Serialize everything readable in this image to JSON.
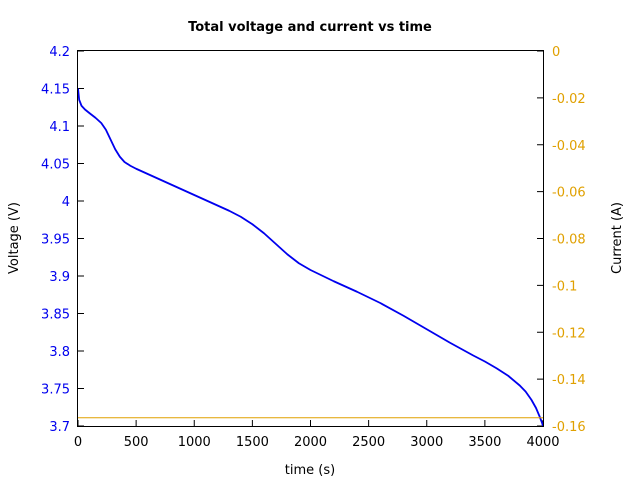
{
  "chart_data": {
    "type": "line",
    "title": "Total voltage and current vs time",
    "xlabel": "time (s)",
    "ylabel_left": "Voltage (V)",
    "ylabel_right": "Current (A)",
    "xlim": [
      0,
      4000
    ],
    "ylim_left": [
      3.7,
      4.2
    ],
    "ylim_right": [
      -0.16,
      0
    ],
    "x_ticks": [
      0,
      500,
      1000,
      1500,
      2000,
      2500,
      3000,
      3500,
      4000
    ],
    "x_tick_labels": [
      "0",
      "500",
      "1000",
      "1500",
      "2000",
      "2500",
      "3000",
      "3500",
      "4000"
    ],
    "y_left_ticks": [
      3.7,
      3.75,
      3.8,
      3.85,
      3.9,
      3.95,
      4.0,
      4.05,
      4.1,
      4.15,
      4.2
    ],
    "y_left_tick_labels": [
      "3.7",
      "3.75",
      "3.8",
      "3.85",
      "3.9",
      "3.95",
      "4",
      "4.05",
      "4.1",
      "4.15",
      "4.2"
    ],
    "y_right_ticks": [
      -0.16,
      -0.14,
      -0.12,
      -0.1,
      -0.08,
      -0.06,
      -0.04,
      -0.02,
      0
    ],
    "y_right_tick_labels": [
      "-0.16",
      "-0.14",
      "-0.12",
      "-0.1",
      "-0.08",
      "-0.06",
      "-0.04",
      "-0.02",
      "0"
    ],
    "grid": false,
    "series": [
      {
        "axis": "left",
        "color": "#0000ee",
        "x": [
          0,
          10,
          30,
          60,
          100,
          150,
          200,
          240,
          280,
          320,
          360,
          400,
          450,
          500,
          600,
          700,
          800,
          900,
          1000,
          1100,
          1200,
          1300,
          1400,
          1500,
          1600,
          1700,
          1800,
          1900,
          2000,
          2200,
          2400,
          2600,
          2800,
          3000,
          3200,
          3400,
          3500,
          3600,
          3700,
          3800,
          3850,
          3900,
          3940,
          3970,
          3990,
          4000
        ],
        "y": [
          4.15,
          4.135,
          4.127,
          4.122,
          4.117,
          4.111,
          4.104,
          4.095,
          4.082,
          4.069,
          4.059,
          4.052,
          4.047,
          4.043,
          4.036,
          4.029,
          4.022,
          4.015,
          4.008,
          4.001,
          3.994,
          3.987,
          3.979,
          3.969,
          3.957,
          3.943,
          3.929,
          3.917,
          3.908,
          3.893,
          3.879,
          3.864,
          3.847,
          3.829,
          3.811,
          3.794,
          3.786,
          3.777,
          3.767,
          3.754,
          3.746,
          3.735,
          3.724,
          3.713,
          3.705,
          3.7
        ]
      },
      {
        "axis": "right",
        "color": "#e0a000",
        "x": [
          0,
          4000
        ],
        "y": [
          -0.1565,
          -0.1565
        ]
      }
    ]
  }
}
